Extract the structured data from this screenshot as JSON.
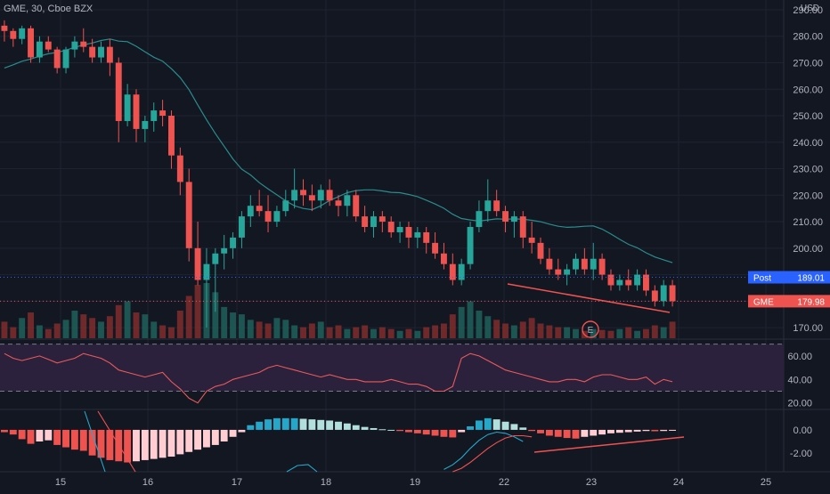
{
  "header": {
    "symbol_line": "GME, 30, Cboe BZX",
    "currency": "USD"
  },
  "colors": {
    "background": "#131722",
    "grid": "#1f2330",
    "up": "#26a69a",
    "down": "#ef5350",
    "ma_line": "#2a8c8c",
    "rsi_line": "#e85a5a",
    "rsi_band": "#2b213c",
    "post_label": "#2962ff",
    "gme_label": "#ef5350",
    "text": "#b2b5be",
    "macd_pos_strong": "#26a7c9",
    "macd_pos_weak": "#b2dfdb",
    "macd_neg_strong": "#ef5350",
    "macd_neg_weak": "#ffcdd2"
  },
  "chart_data": [
    {
      "type": "candlestick",
      "title": "GME, 30, Cboe BZX",
      "y_axis_label": "USD",
      "y_ticks": [
        "290.00",
        "280.00",
        "270.00",
        "260.00",
        "250.00",
        "240.00",
        "230.00",
        "220.00",
        "210.00",
        "200.00",
        "170.00"
      ],
      "ylim": [
        166,
        291
      ],
      "x_ticks": [
        "15",
        "16",
        "17",
        "18",
        "19",
        "22",
        "23",
        "24",
        "25"
      ],
      "price_labels": [
        {
          "name": "Post",
          "value": "189.01"
        },
        {
          "name": "GME",
          "value": "179.98"
        }
      ],
      "earnings_marker": "E",
      "candles": [
        [
          284,
          286,
          278,
          282
        ],
        [
          282,
          283,
          276,
          279
        ],
        [
          279,
          284,
          277,
          283
        ],
        [
          283,
          284,
          270,
          272
        ],
        [
          272,
          280,
          270,
          278
        ],
        [
          278,
          280,
          274,
          275
        ],
        [
          275,
          276,
          266,
          268
        ],
        [
          268,
          276,
          266,
          275
        ],
        [
          275,
          280,
          272,
          278
        ],
        [
          278,
          283,
          274,
          276
        ],
        [
          276,
          279,
          270,
          272
        ],
        [
          272,
          278,
          270,
          276
        ],
        [
          276,
          279,
          265,
          270
        ],
        [
          270,
          272,
          240,
          248
        ],
        [
          248,
          262,
          246,
          258
        ],
        [
          258,
          260,
          240,
          245
        ],
        [
          245,
          250,
          240,
          248
        ],
        [
          248,
          255,
          244,
          252
        ],
        [
          252,
          256,
          246,
          250
        ],
        [
          250,
          252,
          230,
          235
        ],
        [
          235,
          238,
          220,
          225
        ],
        [
          225,
          230,
          195,
          200
        ],
        [
          200,
          210,
          186,
          188
        ],
        [
          188,
          200,
          170,
          194
        ],
        [
          194,
          200,
          176,
          198
        ],
        [
          198,
          205,
          192,
          200
        ],
        [
          200,
          206,
          196,
          204
        ],
        [
          204,
          214,
          200,
          212
        ],
        [
          212,
          220,
          208,
          216
        ],
        [
          216,
          222,
          212,
          214
        ],
        [
          214,
          220,
          206,
          210
        ],
        [
          210,
          216,
          208,
          214
        ],
        [
          214,
          222,
          212,
          218
        ],
        [
          218,
          230,
          215,
          222
        ],
        [
          222,
          226,
          216,
          220
        ],
        [
          220,
          224,
          214,
          218
        ],
        [
          218,
          224,
          215,
          222
        ],
        [
          222,
          226,
          216,
          218
        ],
        [
          218,
          220,
          212,
          216
        ],
        [
          216,
          222,
          212,
          220
        ],
        [
          220,
          222,
          210,
          212
        ],
        [
          212,
          216,
          206,
          208
        ],
        [
          208,
          214,
          204,
          212
        ],
        [
          212,
          214,
          206,
          210
        ],
        [
          210,
          212,
          204,
          206
        ],
        [
          206,
          210,
          202,
          208
        ],
        [
          208,
          210,
          200,
          204
        ],
        [
          204,
          208,
          200,
          206
        ],
        [
          206,
          208,
          198,
          202
        ],
        [
          202,
          206,
          196,
          198
        ],
        [
          198,
          202,
          192,
          194
        ],
        [
          194,
          198,
          186,
          188
        ],
        [
          188,
          196,
          186,
          194
        ],
        [
          194,
          210,
          192,
          208
        ],
        [
          208,
          218,
          206,
          214
        ],
        [
          214,
          226,
          210,
          218
        ],
        [
          218,
          222,
          212,
          214
        ],
        [
          214,
          216,
          206,
          210
        ],
        [
          210,
          214,
          204,
          212
        ],
        [
          212,
          214,
          200,
          204
        ],
        [
          204,
          210,
          198,
          202
        ],
        [
          202,
          204,
          194,
          196
        ],
        [
          196,
          200,
          190,
          192
        ],
        [
          192,
          196,
          188,
          190
        ],
        [
          190,
          194,
          186,
          192
        ],
        [
          192,
          198,
          190,
          196
        ],
        [
          196,
          200,
          190,
          192
        ],
        [
          192,
          202,
          188,
          196
        ],
        [
          196,
          198,
          188,
          190
        ],
        [
          190,
          192,
          184,
          186
        ],
        [
          186,
          190,
          184,
          188
        ],
        [
          188,
          192,
          184,
          186
        ],
        [
          186,
          192,
          184,
          190
        ],
        [
          190,
          192,
          182,
          184
        ],
        [
          184,
          186,
          178,
          180
        ],
        [
          180,
          188,
          178,
          186
        ],
        [
          186,
          188,
          178,
          180
        ]
      ],
      "moving_average_start": 262,
      "moving_average_end": 198,
      "volume": [
        18,
        12,
        22,
        28,
        14,
        10,
        16,
        20,
        30,
        26,
        22,
        18,
        24,
        36,
        40,
        28,
        26,
        18,
        14,
        12,
        30,
        46,
        58,
        60,
        50,
        34,
        28,
        26,
        20,
        18,
        16,
        22,
        20,
        14,
        12,
        16,
        18,
        12,
        14,
        10,
        12,
        14,
        10,
        12,
        10,
        8,
        10,
        8,
        12,
        14,
        16,
        26,
        34,
        40,
        30,
        24,
        20,
        16,
        14,
        18,
        22,
        16,
        14,
        12,
        12,
        10,
        8,
        10,
        9,
        8,
        10,
        12,
        8,
        10,
        14,
        12,
        18
      ]
    },
    {
      "type": "line",
      "title": "RSI",
      "y_ticks": [
        "60.00",
        "40.00",
        "20.00"
      ],
      "ylim": [
        16,
        72
      ],
      "bands": [
        70,
        30
      ],
      "values": [
        62,
        58,
        56,
        58,
        60,
        57,
        54,
        56,
        58,
        62,
        60,
        58,
        54,
        48,
        46,
        44,
        42,
        44,
        46,
        38,
        32,
        24,
        20,
        30,
        34,
        36,
        40,
        42,
        44,
        46,
        50,
        52,
        50,
        48,
        46,
        44,
        42,
        44,
        42,
        40,
        40,
        38,
        38,
        38,
        40,
        38,
        36,
        36,
        34,
        30,
        30,
        34,
        58,
        62,
        60,
        56,
        52,
        48,
        46,
        44,
        42,
        40,
        38,
        38,
        40,
        40,
        38,
        42,
        44,
        44,
        42,
        40,
        40,
        42,
        36,
        40,
        38
      ]
    },
    {
      "type": "histogram",
      "title": "MACD",
      "y_ticks": [
        "0.00",
        "-2.00"
      ],
      "ylim": [
        -3.6,
        1.6
      ],
      "values": [
        -0.2,
        -0.4,
        -0.8,
        -1.2,
        -1.0,
        -0.9,
        -1.3,
        -1.5,
        -1.7,
        -1.8,
        -2.2,
        -2.4,
        -2.6,
        -2.7,
        -2.8,
        -2.7,
        -2.6,
        -2.5,
        -2.4,
        -2.3,
        -2.1,
        -1.9,
        -1.7,
        -1.5,
        -1.3,
        -1.0,
        -0.6,
        -0.2,
        0.4,
        0.7,
        0.9,
        1.0,
        1.0,
        1.0,
        0.95,
        0.9,
        0.85,
        0.8,
        0.7,
        0.55,
        0.4,
        0.25,
        0.15,
        0.05,
        0.0,
        -0.1,
        -0.2,
        -0.3,
        -0.4,
        -0.5,
        -0.6,
        -0.65,
        -0.2,
        0.3,
        0.8,
        1.0,
        0.9,
        0.7,
        0.5,
        0.2,
        -0.1,
        -0.3,
        -0.5,
        -0.6,
        -0.7,
        -0.75,
        -0.6,
        -0.5,
        -0.4,
        -0.3,
        -0.25,
        -0.2,
        -0.15,
        -0.1,
        -0.12,
        -0.1,
        -0.08
      ],
      "macd_line_segment": [
        -3.4,
        -3.0,
        -2.4,
        -1.6,
        -0.9,
        -0.4,
        -0.2,
        -0.3,
        -0.6,
        -1.0
      ],
      "signal_line_segment": [
        -3.6,
        -3.3,
        -2.8,
        -2.2,
        -1.6,
        -1.1,
        -0.7,
        -0.5,
        -0.5,
        -0.6
      ]
    }
  ]
}
